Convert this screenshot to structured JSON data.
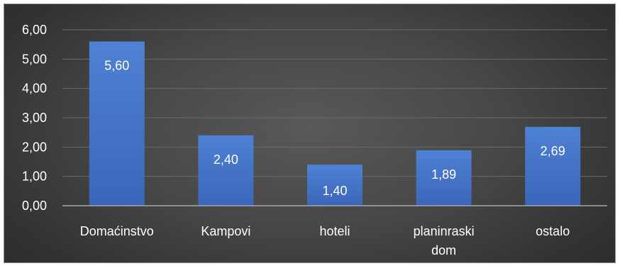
{
  "chart_data": {
    "type": "bar",
    "categories": [
      "Domaćinstvo",
      "Kampovi",
      "hoteli",
      "planinraski dom",
      "ostalo"
    ],
    "category_lines": [
      [
        "Domaćinstvo"
      ],
      [
        "Kampovi"
      ],
      [
        "hoteli"
      ],
      [
        "planinraski",
        "dom"
      ],
      [
        "ostalo"
      ]
    ],
    "values": [
      5.6,
      2.4,
      1.4,
      1.89,
      2.69
    ],
    "value_labels": [
      "5,60",
      "2,40",
      "1,40",
      "1,89",
      "2,69"
    ],
    "y_ticks": [
      0,
      1,
      2,
      3,
      4,
      5,
      6
    ],
    "y_tick_labels": [
      "0,00",
      "1,00",
      "2,00",
      "3,00",
      "4,00",
      "5,00",
      "6,00"
    ],
    "ylim": [
      0,
      6
    ],
    "title": "",
    "xlabel": "",
    "ylabel": "",
    "grid": true,
    "legend": "none",
    "colors": {
      "bar_top": "#4f81d4",
      "bar_bottom": "#3a66b8",
      "grid": "#6a6a6a",
      "axis": "#a6a6a6",
      "text": "#ffffff"
    }
  }
}
